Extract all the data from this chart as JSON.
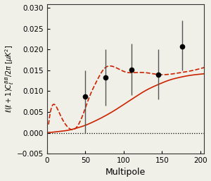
{
  "xlim": [
    0,
    205
  ],
  "ylim": [
    -0.005,
    0.031
  ],
  "xlabel": "Multipole",
  "yticks": [
    -0.005,
    0,
    0.005,
    0.01,
    0.015,
    0.02,
    0.025,
    0.03
  ],
  "xticks": [
    0,
    50,
    100,
    150,
    200
  ],
  "data_points": {
    "x": [
      50,
      76,
      110,
      145,
      176
    ],
    "y": [
      0.0088,
      0.0133,
      0.0152,
      0.0139,
      0.0207
    ],
    "yerr_lo": [
      0.0088,
      0.0068,
      0.0062,
      0.0059,
      0.0057
    ],
    "yerr_hi": [
      0.0062,
      0.0068,
      0.0063,
      0.0061,
      0.0063
    ]
  },
  "line_color": "#cc2200",
  "dot_color": "black",
  "background_color": "#f0f0e8",
  "figsize": [
    3.0,
    2.57
  ],
  "dpi": 100,
  "lensing_ell": [
    2,
    5,
    10,
    20,
    30,
    40,
    50,
    60,
    70,
    80,
    90,
    100,
    110,
    120,
    130,
    140,
    150,
    160,
    170,
    180,
    190,
    200,
    205
  ],
  "lensing_cl": [
    0.0001,
    0.0001,
    0.0002,
    0.0004,
    0.0007,
    0.0012,
    0.0018,
    0.0026,
    0.0035,
    0.0045,
    0.0056,
    0.0068,
    0.008,
    0.0092,
    0.0103,
    0.0112,
    0.012,
    0.0127,
    0.0132,
    0.0136,
    0.0139,
    0.0141,
    0.0142
  ],
  "gw_ell": [
    2,
    5,
    8,
    12,
    18,
    25,
    35,
    45,
    55,
    65,
    75,
    85,
    95,
    105,
    115,
    125,
    135,
    145,
    155,
    165,
    175,
    185,
    195,
    205
  ],
  "gw_cl": [
    0.002,
    0.0055,
    0.0068,
    0.0063,
    0.004,
    0.0018,
    0.0008,
    0.0035,
    0.0085,
    0.0125,
    0.0155,
    0.016,
    0.0152,
    0.0145,
    0.0145,
    0.0145,
    0.0143,
    0.014,
    0.014,
    0.0142,
    0.0145,
    0.0148,
    0.0152,
    0.0157
  ]
}
